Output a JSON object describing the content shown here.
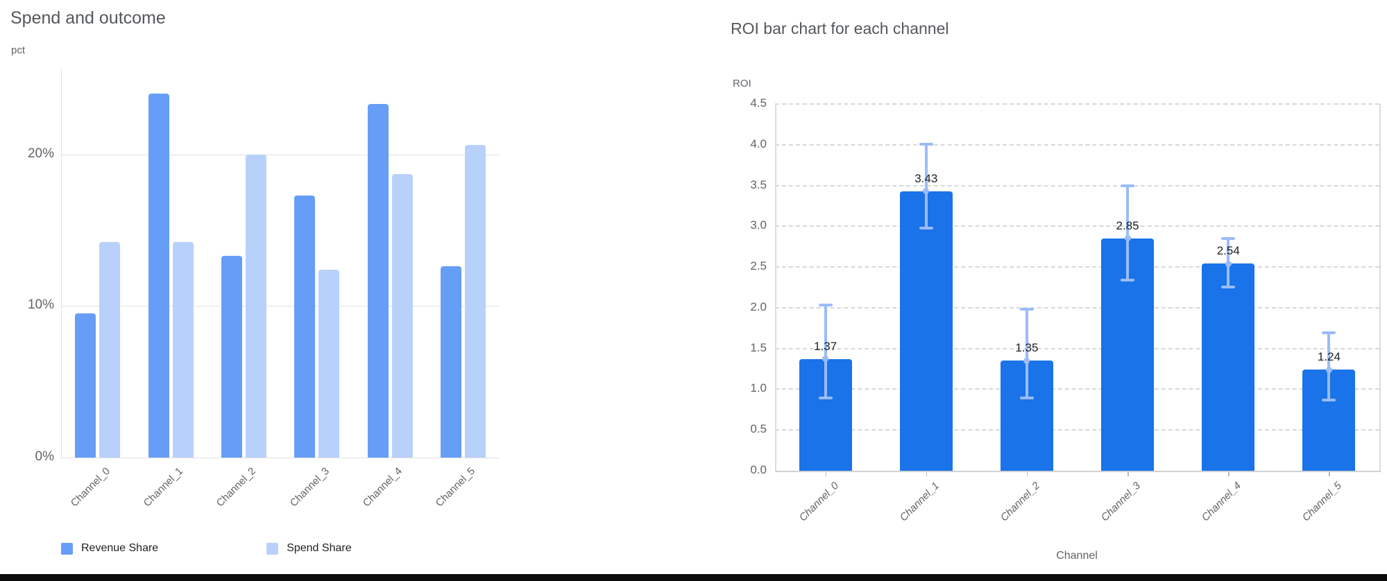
{
  "page": {
    "background": "#ffffff",
    "bottom_divider_color": "#0b0b0b"
  },
  "left_chart": {
    "title": "Spend and outcome",
    "y_axis_label": "pct"
  },
  "right_chart": {
    "title": "ROI bar chart for each channel",
    "y_axis_label": "ROI",
    "x_axis_label": "Channel"
  },
  "chart_data": [
    {
      "type": "bar",
      "title": "Spend and outcome",
      "xlabel": "",
      "ylabel": "pct",
      "unit": "percent",
      "categories": [
        "Channel_0",
        "Channel_1",
        "Channel_2",
        "Channel_3",
        "Channel_4",
        "Channel_5"
      ],
      "series": [
        {
          "name": "Revenue Share",
          "color": "#669df6",
          "values": [
            9.5,
            24.0,
            13.3,
            17.3,
            23.3,
            12.6
          ]
        },
        {
          "name": "Spend Share",
          "color": "#b8d1fa",
          "values": [
            14.2,
            14.2,
            20.0,
            12.4,
            18.7,
            20.6
          ]
        }
      ],
      "y_ticks": [
        {
          "value": 0,
          "label": "0%"
        },
        {
          "value": 10,
          "label": "10%"
        },
        {
          "value": 20,
          "label": "20%"
        }
      ],
      "ylim": [
        0,
        25.6
      ],
      "grid": "solid",
      "legend_position": "bottom"
    },
    {
      "type": "bar",
      "title": "ROI bar chart for each channel",
      "xlabel": "Channel",
      "ylabel": "ROI",
      "categories": [
        "Channel_0",
        "Channel_1",
        "Channel_2",
        "Channel_3",
        "Channel_4",
        "Channel_5"
      ],
      "values": [
        1.37,
        3.43,
        1.35,
        2.85,
        2.54,
        1.24
      ],
      "value_labels": [
        "1.37",
        "3.43",
        "1.35",
        "2.85",
        "2.54",
        "1.24"
      ],
      "error_low": [
        0.88,
        2.96,
        0.88,
        2.32,
        2.24,
        0.85
      ],
      "error_high": [
        2.05,
        4.02,
        2.0,
        3.51,
        2.87,
        1.71
      ],
      "bar_color": "#1a73e8",
      "error_color": "#9bbcf9",
      "y_ticks": [
        {
          "value": 0.0,
          "label": "0.0"
        },
        {
          "value": 0.5,
          "label": "0.5"
        },
        {
          "value": 1.0,
          "label": "1.0"
        },
        {
          "value": 1.5,
          "label": "1.5"
        },
        {
          "value": 2.0,
          "label": "2.0"
        },
        {
          "value": 2.5,
          "label": "2.5"
        },
        {
          "value": 3.0,
          "label": "3.0"
        },
        {
          "value": 3.5,
          "label": "3.5"
        },
        {
          "value": 4.0,
          "label": "4.0"
        },
        {
          "value": 4.5,
          "label": "4.5"
        }
      ],
      "ylim": [
        0,
        4.5
      ],
      "grid": "dashed",
      "legend_position": "none"
    }
  ]
}
